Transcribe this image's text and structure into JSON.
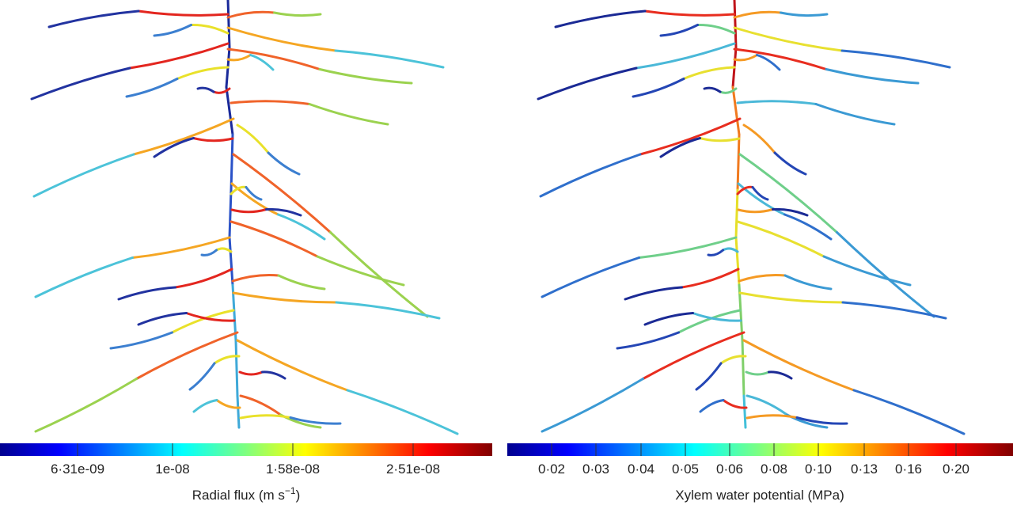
{
  "panels": [
    {
      "colorbar_ticks": [
        "6·31e-09",
        "1e-08",
        "1·58e-08",
        "2·51e-08"
      ],
      "label": "Radial flux (m s",
      "label_sup": "−1",
      "label_end": ")"
    },
    {
      "colorbar_ticks": [
        "0·02",
        "0·03",
        "0·04",
        "0·05",
        "0·06",
        "0·08",
        "0·10",
        "0·13",
        "0·16",
        "0·20"
      ],
      "label": "Xylem water potential (MPa)"
    }
  ]
}
